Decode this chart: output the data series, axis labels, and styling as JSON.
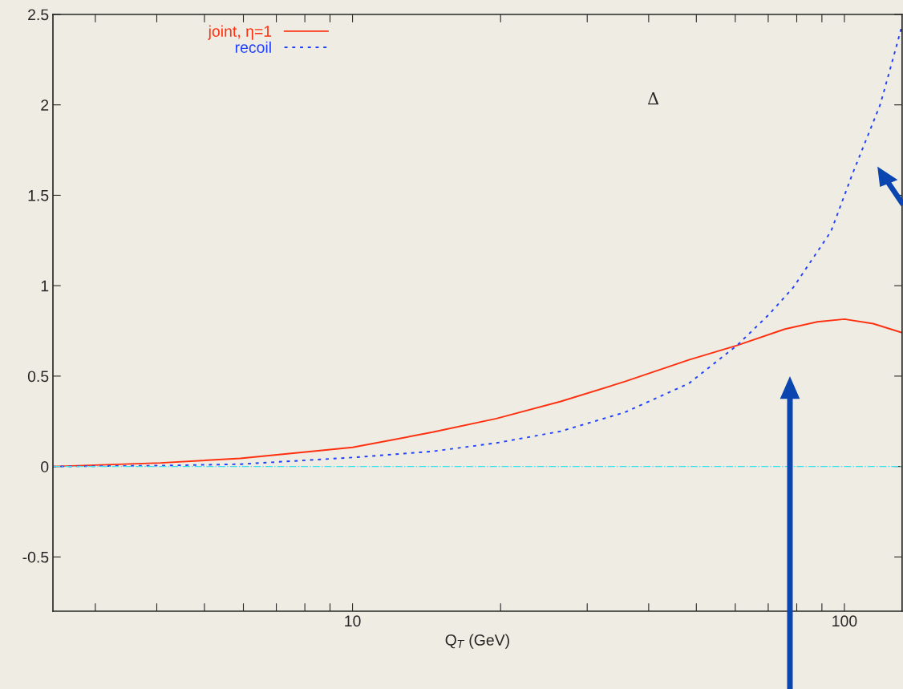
{
  "chart_data": {
    "type": "line",
    "xlabel": "Q$_{T}$ (GeV)",
    "annotations": [
      "Δ"
    ],
    "log": "x",
    "xlim": [
      2.46,
      131
    ],
    "ylim": [
      -0.8,
      2.5
    ],
    "xticks": [
      {
        "value": 3,
        "label": null
      },
      {
        "value": 4,
        "label": null
      },
      {
        "value": 5,
        "label": null
      },
      {
        "value": 6,
        "label": null
      },
      {
        "value": 7,
        "label": null
      },
      {
        "value": 8,
        "label": null
      },
      {
        "value": 9,
        "label": null
      },
      10,
      {
        "value": 20,
        "label": null
      },
      {
        "value": 30,
        "label": null
      },
      {
        "value": 40,
        "label": null
      },
      {
        "value": 50,
        "label": null
      },
      {
        "value": 60,
        "label": null
      },
      {
        "value": 70,
        "label": null
      },
      {
        "value": 80,
        "label": null
      },
      {
        "value": 90,
        "label": null
      },
      100
    ],
    "yticks": [
      -0.5,
      0,
      0.5,
      1,
      1.5,
      2,
      2.5
    ],
    "legend": "top left",
    "grid": false,
    "ref_lines": [
      {
        "axis": "y",
        "value": 0,
        "color": "#40e0f0",
        "line_style": "dashdot"
      }
    ],
    "series": [
      {
        "name": "joint, η=1",
        "color": "#ff3010",
        "line_style": "solid",
        "x": [
          2.46,
          4.07,
          5.91,
          10,
          14.55,
          19.6,
          26.5,
          35.8,
          48.3,
          60.5,
          75.7,
          88.0,
          100,
          114.4,
          131
        ],
        "values": [
          0,
          0.02,
          0.045,
          0.106,
          0.19,
          0.265,
          0.36,
          0.47,
          0.59,
          0.67,
          0.76,
          0.8,
          0.815,
          0.79,
          0.74
        ]
      },
      {
        "name": "recoil",
        "color": "#2040ff",
        "line_style": "dotted",
        "x": [
          2.46,
          4.07,
          5.91,
          10,
          14.55,
          19.6,
          26.5,
          35.8,
          48.3,
          60.5,
          70.2,
          78.7,
          93.9,
          103.9,
          118.2,
          125.1,
          131
        ],
        "values": [
          0,
          0.005,
          0.013,
          0.05,
          0.084,
          0.13,
          0.195,
          0.3,
          0.46,
          0.67,
          0.84,
          0.99,
          1.3,
          1.62,
          2.0,
          2.24,
          2.44
        ]
      }
    ]
  }
}
